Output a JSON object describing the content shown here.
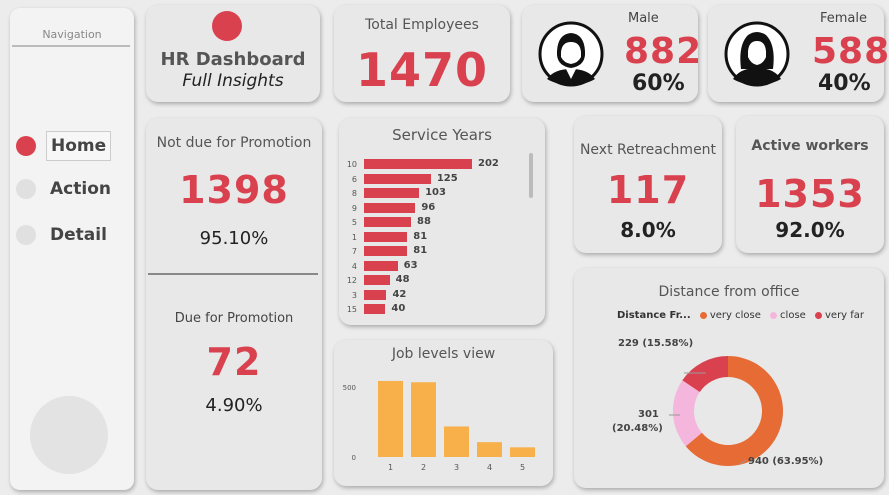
{
  "navigation": {
    "title": "Navigation",
    "items": [
      {
        "label": "Home",
        "active": true
      },
      {
        "label": "Action",
        "active": false
      },
      {
        "label": "Detail",
        "active": false
      }
    ]
  },
  "header": {
    "title": "HR Dashboard",
    "subtitle": "Full Insights"
  },
  "total_employees": {
    "label": "Total Employees",
    "value": "1470"
  },
  "male": {
    "label": "Male",
    "value": "882",
    "pct": "60%",
    "icon": "male-avatar-icon"
  },
  "female": {
    "label": "Female",
    "value": "588",
    "pct": "40%",
    "icon": "female-avatar-icon"
  },
  "not_due": {
    "label": "Not due for Promotion",
    "value": "1398",
    "pct": "95.10%"
  },
  "due": {
    "label": "Due for Promotion",
    "value": "72",
    "pct": "4.90%"
  },
  "next_retrenchment": {
    "label": "Next Retreachment",
    "value": "117",
    "pct": "8.0%"
  },
  "active_workers": {
    "label": "Active workers",
    "value": "1353",
    "pct": "92.0%"
  },
  "service_years": {
    "title": "Service Years"
  },
  "job_levels": {
    "title": "Job levels view"
  },
  "distance": {
    "title": "Distance from office",
    "legend_title": "Distance Fr...",
    "labels": {
      "very_close": "940 (63.95%)",
      "close_a": "301",
      "close_b": "(20.48%)",
      "very_far": "229 (15.58%)"
    }
  },
  "colors": {
    "accent": "#d9414f",
    "bar_orange": "#f8b04a",
    "very_close": "#e66b35",
    "close": "#f4b6dc",
    "very_far": "#d9414f"
  },
  "chart_data": [
    {
      "type": "bar",
      "title": "Service Years",
      "orientation": "horizontal",
      "categories": [
        "10",
        "6",
        "8",
        "9",
        "5",
        "1",
        "7",
        "4",
        "12",
        "3",
        "15"
      ],
      "values": [
        202,
        125,
        103,
        96,
        88,
        81,
        81,
        63,
        48,
        42,
        40
      ]
    },
    {
      "type": "bar",
      "title": "Job levels view",
      "categories": [
        "1",
        "2",
        "3",
        "4",
        "5"
      ],
      "values": [
        543,
        534,
        218,
        106,
        69
      ],
      "yticks": [
        "0",
        "500"
      ],
      "ylim": [
        0,
        600
      ]
    },
    {
      "type": "pie",
      "title": "Distance from office",
      "legend_title": "Distance Fr...",
      "labels": [
        "very close",
        "close",
        "very far"
      ],
      "values": [
        940,
        301,
        229
      ],
      "percent": [
        63.95,
        20.48,
        15.58
      ]
    }
  ]
}
